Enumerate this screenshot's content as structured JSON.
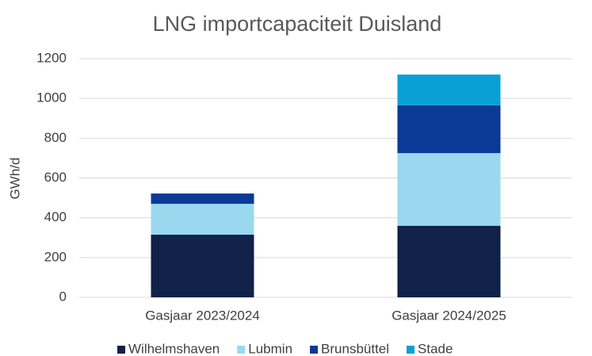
{
  "chart_data": {
    "type": "stacked_bar",
    "title": "LNG importcapaciteit Duisland",
    "y_label": "GWh/d",
    "categories": [
      "Gasjaar 2023/2024",
      "Gasjaar 2024/2025"
    ],
    "series": [
      {
        "name": "Wilhelmshaven",
        "color": "#10214a",
        "values": [
          315,
          360
        ]
      },
      {
        "name": "Lubmin",
        "color": "#9ad8f0",
        "values": [
          155,
          365
        ]
      },
      {
        "name": "Brunsbüttel",
        "color": "#0b3a96",
        "values": [
          52,
          240
        ]
      },
      {
        "name": "Stade",
        "color": "#0aa0d6",
        "values": [
          0,
          155
        ]
      }
    ],
    "ylim": [
      0,
      1200
    ],
    "yticks": [
      0,
      200,
      400,
      600,
      800,
      1000,
      1200
    ],
    "grid": true,
    "legend": "bottom"
  }
}
